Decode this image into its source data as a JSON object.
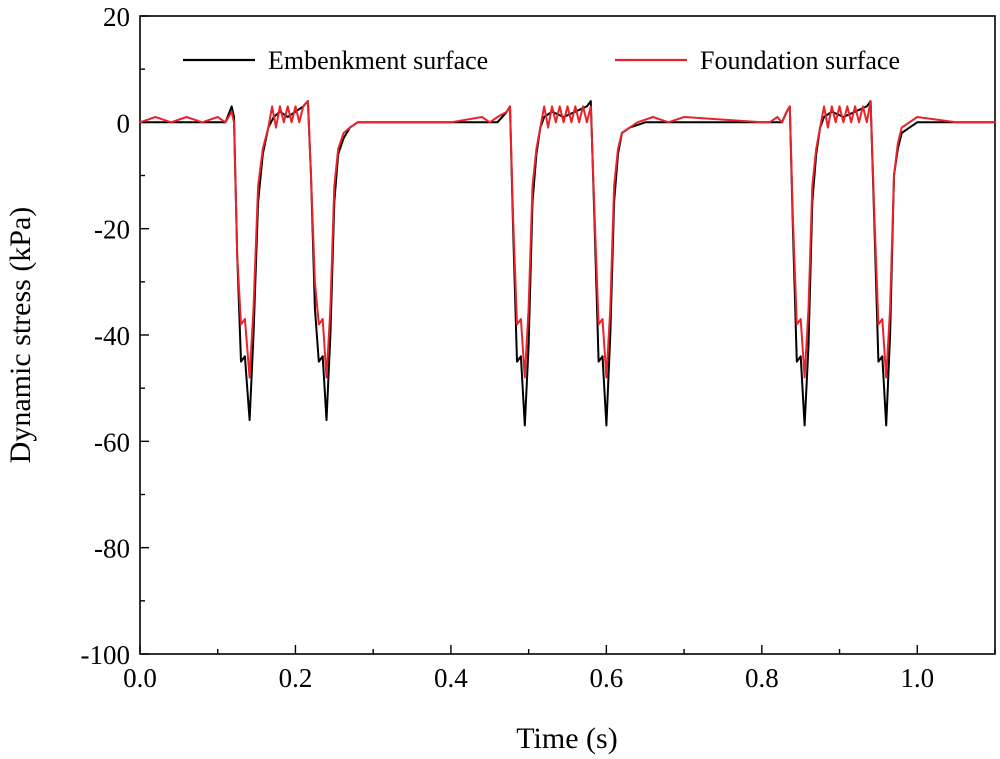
{
  "chart_data": {
    "type": "line",
    "title": "",
    "xlabel": "Time (s)",
    "ylabel": "Dynamic stress (kPa)",
    "xlim": [
      0,
      1.1
    ],
    "ylim": [
      -100,
      20
    ],
    "x_ticks": [
      0.0,
      0.2,
      0.4,
      0.6,
      0.8,
      1.0
    ],
    "x_tick_labels": [
      "0.0",
      "0.2",
      "0.4",
      "0.6",
      "0.8",
      "1.0"
    ],
    "y_ticks": [
      20,
      0,
      -20,
      -40,
      -60,
      -80,
      -100
    ],
    "y_tick_labels": [
      "20",
      "0",
      "-20",
      "-40",
      "-60",
      "-80",
      "-100"
    ],
    "grid": false,
    "legend": {
      "placement": "top",
      "orientation": "horizontal"
    },
    "series": [
      {
        "name": "Embenkment surface",
        "color": "#000000",
        "x": [
          0.0,
          0.11,
          0.118,
          0.121,
          0.125,
          0.13,
          0.135,
          0.141,
          0.146,
          0.152,
          0.158,
          0.165,
          0.172,
          0.18,
          0.19,
          0.2,
          0.21,
          0.216,
          0.22,
          0.225,
          0.23,
          0.235,
          0.24,
          0.245,
          0.25,
          0.255,
          0.262,
          0.27,
          0.28,
          0.3,
          0.4,
          0.46,
          0.472,
          0.476,
          0.48,
          0.485,
          0.49,
          0.495,
          0.5,
          0.505,
          0.51,
          0.515,
          0.52,
          0.53,
          0.545,
          0.56,
          0.575,
          0.58,
          0.585,
          0.59,
          0.595,
          0.6,
          0.605,
          0.61,
          0.615,
          0.62,
          0.63,
          0.65,
          0.7,
          0.8,
          0.826,
          0.832,
          0.836,
          0.84,
          0.845,
          0.85,
          0.855,
          0.86,
          0.865,
          0.87,
          0.875,
          0.88,
          0.89,
          0.905,
          0.92,
          0.935,
          0.94,
          0.945,
          0.95,
          0.955,
          0.96,
          0.965,
          0.97,
          0.975,
          0.98,
          0.99,
          1.0,
          1.05,
          1.1
        ],
        "y": [
          0,
          0,
          3,
          1,
          -25,
          -45,
          -44,
          -56,
          -40,
          -15,
          -6,
          -1,
          1,
          2,
          1,
          2,
          3,
          4,
          -10,
          -35,
          -45,
          -44,
          -56,
          -40,
          -15,
          -6,
          -3,
          -1,
          0,
          0,
          0,
          0,
          2,
          3,
          -20,
          -45,
          -44,
          -57,
          -42,
          -15,
          -6,
          -1,
          1,
          2,
          1,
          2,
          3,
          4,
          -20,
          -45,
          -44,
          -57,
          -40,
          -15,
          -6,
          -2,
          -1,
          0,
          0,
          0,
          0,
          2,
          3,
          -20,
          -45,
          -44,
          -57,
          -42,
          -15,
          -6,
          -1,
          1,
          2,
          1,
          2,
          3,
          4,
          -20,
          -45,
          -44,
          -57,
          -40,
          -10,
          -5,
          -2,
          -1,
          0,
          0,
          0
        ]
      },
      {
        "name": "Foundation surface",
        "color": "#e8232a",
        "x": [
          0.0,
          0.02,
          0.04,
          0.06,
          0.08,
          0.1,
          0.11,
          0.118,
          0.121,
          0.125,
          0.13,
          0.135,
          0.141,
          0.146,
          0.152,
          0.158,
          0.165,
          0.17,
          0.175,
          0.18,
          0.185,
          0.19,
          0.195,
          0.2,
          0.205,
          0.21,
          0.216,
          0.22,
          0.225,
          0.23,
          0.235,
          0.24,
          0.245,
          0.25,
          0.255,
          0.262,
          0.27,
          0.28,
          0.3,
          0.4,
          0.44,
          0.45,
          0.46,
          0.472,
          0.476,
          0.48,
          0.485,
          0.49,
          0.495,
          0.5,
          0.505,
          0.51,
          0.515,
          0.52,
          0.525,
          0.53,
          0.535,
          0.54,
          0.545,
          0.55,
          0.555,
          0.56,
          0.565,
          0.57,
          0.575,
          0.58,
          0.585,
          0.59,
          0.595,
          0.6,
          0.605,
          0.61,
          0.615,
          0.62,
          0.64,
          0.66,
          0.68,
          0.7,
          0.8,
          0.81,
          0.82,
          0.826,
          0.832,
          0.836,
          0.84,
          0.845,
          0.85,
          0.855,
          0.86,
          0.865,
          0.87,
          0.875,
          0.88,
          0.885,
          0.89,
          0.895,
          0.9,
          0.905,
          0.91,
          0.915,
          0.92,
          0.925,
          0.93,
          0.935,
          0.94,
          0.945,
          0.95,
          0.955,
          0.96,
          0.965,
          0.97,
          0.975,
          0.98,
          0.99,
          1.0,
          1.05,
          1.1
        ],
        "y": [
          0,
          1,
          0,
          1,
          0,
          1,
          0,
          2,
          0,
          -25,
          -38,
          -37,
          -48,
          -35,
          -12,
          -5,
          -1,
          3,
          -1,
          3,
          0,
          3,
          0,
          3,
          0,
          3,
          4,
          -10,
          -30,
          -38,
          -37,
          -48,
          -35,
          -12,
          -5,
          -2,
          -1,
          0,
          0,
          0,
          1,
          0,
          1,
          2,
          3,
          -18,
          -38,
          -37,
          -48,
          -35,
          -12,
          -5,
          -1,
          3,
          -1,
          3,
          0,
          3,
          0,
          3,
          0,
          3,
          0,
          3,
          0,
          3,
          -18,
          -38,
          -37,
          -48,
          -35,
          -12,
          -5,
          -2,
          0,
          1,
          0,
          1,
          0,
          0,
          1,
          0,
          2,
          3,
          -18,
          -38,
          -37,
          -48,
          -35,
          -12,
          -5,
          -1,
          3,
          -1,
          3,
          0,
          3,
          0,
          3,
          0,
          3,
          0,
          3,
          0,
          4,
          -18,
          -38,
          -37,
          -48,
          -35,
          -10,
          -4,
          -1,
          0,
          1,
          0,
          0
        ]
      }
    ]
  }
}
